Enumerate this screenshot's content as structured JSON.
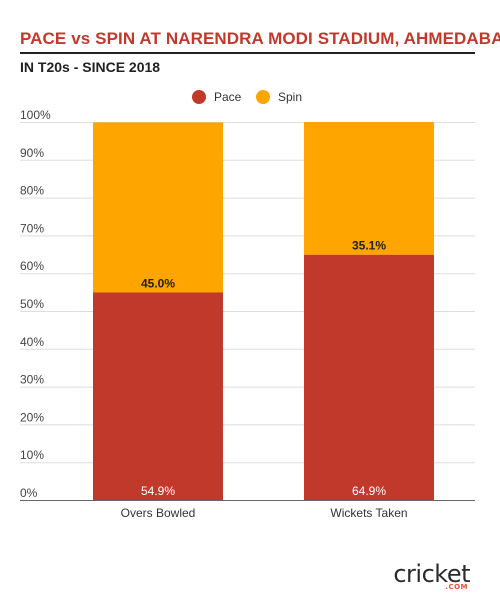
{
  "header": {
    "title": "PACE vs SPIN AT NARENDRA MODI STADIUM, AHMEDABAD",
    "subtitle": "IN T20s - SINCE 2018"
  },
  "logo": {
    "text": "cricket",
    "domain": ".COM",
    "accent_color": "#e8523a"
  },
  "colors": {
    "title": "#c0392b",
    "pace": "#c0392b",
    "spin": "#ffa500"
  },
  "chart_data": {
    "type": "bar",
    "stacked": true,
    "percent": true,
    "categories": [
      "Overs Bowled",
      "Wickets Taken"
    ],
    "series": [
      {
        "name": "Pace",
        "values": [
          54.9,
          64.9
        ],
        "labels": [
          "54.9%",
          "64.9%"
        ],
        "color": "#c0392b"
      },
      {
        "name": "Spin",
        "values": [
          45.0,
          35.1
        ],
        "labels": [
          "45.0%",
          "35.1%"
        ],
        "color": "#ffa500"
      }
    ],
    "ylim": [
      0,
      100
    ],
    "yticks": [
      "0%",
      "10%",
      "20%",
      "30%",
      "40%",
      "50%",
      "60%",
      "70%",
      "80%",
      "90%",
      "100%"
    ],
    "grid": true,
    "legend": "top-center"
  }
}
